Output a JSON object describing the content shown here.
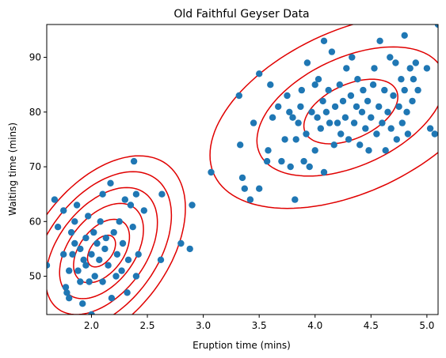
{
  "chart_data": {
    "type": "scatter",
    "title": "Old Faithful Geyser Data",
    "xlabel": "Eruption time (mins)",
    "ylabel": "Waiting time (mins)",
    "xlim": [
      1.6,
      5.1
    ],
    "ylim": [
      43,
      96
    ],
    "xticks": [
      "2.0",
      "2.5",
      "3.0",
      "3.5",
      "4.0",
      "4.5",
      "5.0"
    ],
    "yticks": [
      "50",
      "60",
      "70",
      "80",
      "90"
    ],
    "grid": false,
    "legend": "none",
    "point_color": "#1f77b4",
    "contour_color": "#e00000",
    "points": [
      [
        1.6,
        52
      ],
      [
        1.67,
        64
      ],
      [
        1.7,
        59
      ],
      [
        1.75,
        62
      ],
      [
        1.75,
        54
      ],
      [
        1.77,
        48
      ],
      [
        1.78,
        47
      ],
      [
        1.8,
        51
      ],
      [
        1.8,
        46
      ],
      [
        1.82,
        58
      ],
      [
        1.83,
        54
      ],
      [
        1.85,
        60
      ],
      [
        1.85,
        56
      ],
      [
        1.87,
        63
      ],
      [
        1.88,
        51
      ],
      [
        1.9,
        55
      ],
      [
        1.9,
        49
      ],
      [
        1.92,
        45
      ],
      [
        1.93,
        53
      ],
      [
        1.95,
        57
      ],
      [
        1.95,
        52
      ],
      [
        1.97,
        61
      ],
      [
        1.98,
        49
      ],
      [
        2.0,
        43
      ],
      [
        2.0,
        54
      ],
      [
        2.02,
        58
      ],
      [
        2.03,
        50
      ],
      [
        2.05,
        56
      ],
      [
        2.07,
        53
      ],
      [
        2.08,
        60
      ],
      [
        2.1,
        65
      ],
      [
        2.1,
        49
      ],
      [
        2.12,
        55
      ],
      [
        2.13,
        57
      ],
      [
        2.15,
        52
      ],
      [
        2.17,
        67
      ],
      [
        2.18,
        46
      ],
      [
        2.2,
        58
      ],
      [
        2.22,
        50
      ],
      [
        2.23,
        54
      ],
      [
        2.25,
        60
      ],
      [
        2.27,
        51
      ],
      [
        2.28,
        56
      ],
      [
        2.3,
        64
      ],
      [
        2.32,
        47
      ],
      [
        2.33,
        53
      ],
      [
        2.35,
        63
      ],
      [
        2.37,
        59
      ],
      [
        2.38,
        71
      ],
      [
        2.4,
        65
      ],
      [
        2.4,
        50
      ],
      [
        2.42,
        54
      ],
      [
        2.47,
        62
      ],
      [
        2.62,
        53
      ],
      [
        2.63,
        65
      ],
      [
        2.8,
        56
      ],
      [
        2.88,
        55
      ],
      [
        2.9,
        63
      ],
      [
        3.07,
        69
      ],
      [
        3.32,
        83
      ],
      [
        3.33,
        74
      ],
      [
        3.35,
        68
      ],
      [
        3.37,
        66
      ],
      [
        3.42,
        64
      ],
      [
        3.45,
        78
      ],
      [
        3.5,
        87
      ],
      [
        3.5,
        66
      ],
      [
        3.57,
        71
      ],
      [
        3.58,
        73
      ],
      [
        3.6,
        85
      ],
      [
        3.62,
        79
      ],
      [
        3.67,
        81
      ],
      [
        3.7,
        71
      ],
      [
        3.73,
        75
      ],
      [
        3.75,
        83
      ],
      [
        3.77,
        80
      ],
      [
        3.78,
        70
      ],
      [
        3.8,
        79
      ],
      [
        3.82,
        64
      ],
      [
        3.83,
        75
      ],
      [
        3.85,
        78
      ],
      [
        3.87,
        81
      ],
      [
        3.88,
        84
      ],
      [
        3.9,
        71
      ],
      [
        3.92,
        76
      ],
      [
        3.93,
        89
      ],
      [
        3.95,
        70
      ],
      [
        3.97,
        80
      ],
      [
        4.0,
        85
      ],
      [
        4.0,
        73
      ],
      [
        4.02,
        79
      ],
      [
        4.03,
        86
      ],
      [
        4.05,
        77
      ],
      [
        4.07,
        82
      ],
      [
        4.08,
        93
      ],
      [
        4.08,
        69
      ],
      [
        4.1,
        80
      ],
      [
        4.12,
        84
      ],
      [
        4.13,
        78
      ],
      [
        4.15,
        91
      ],
      [
        4.17,
        74
      ],
      [
        4.18,
        81
      ],
      [
        4.2,
        78
      ],
      [
        4.22,
        85
      ],
      [
        4.23,
        76
      ],
      [
        4.25,
        82
      ],
      [
        4.27,
        79
      ],
      [
        4.28,
        88
      ],
      [
        4.3,
        75
      ],
      [
        4.32,
        83
      ],
      [
        4.33,
        90
      ],
      [
        4.35,
        78
      ],
      [
        4.37,
        81
      ],
      [
        4.38,
        86
      ],
      [
        4.4,
        74
      ],
      [
        4.42,
        80
      ],
      [
        4.43,
        84
      ],
      [
        4.45,
        77
      ],
      [
        4.47,
        82
      ],
      [
        4.48,
        73
      ],
      [
        4.5,
        79
      ],
      [
        4.52,
        85
      ],
      [
        4.53,
        88
      ],
      [
        4.55,
        76
      ],
      [
        4.57,
        81
      ],
      [
        4.58,
        93
      ],
      [
        4.6,
        78
      ],
      [
        4.62,
        84
      ],
      [
        4.63,
        73
      ],
      [
        4.65,
        80
      ],
      [
        4.67,
        90
      ],
      [
        4.68,
        77
      ],
      [
        4.7,
        83
      ],
      [
        4.72,
        89
      ],
      [
        4.73,
        75
      ],
      [
        4.75,
        81
      ],
      [
        4.77,
        86
      ],
      [
        4.78,
        78
      ],
      [
        4.8,
        84
      ],
      [
        4.8,
        94
      ],
      [
        4.82,
        80
      ],
      [
        4.83,
        76
      ],
      [
        4.85,
        88
      ],
      [
        4.87,
        82
      ],
      [
        4.88,
        86
      ],
      [
        4.9,
        89
      ],
      [
        4.92,
        84
      ],
      [
        5.0,
        88
      ],
      [
        5.03,
        77
      ],
      [
        5.07,
        76
      ],
      [
        5.1,
        96
      ]
    ],
    "contours": [
      {
        "cx": 2.09,
        "cy": 54.6,
        "sx": 0.25,
        "sy": 5.8,
        "rho": 0.45,
        "levels": [
          0.5,
          1.0,
          1.5,
          2.0,
          2.5,
          3.0
        ]
      },
      {
        "cx": 4.32,
        "cy": 80.1,
        "sx": 0.42,
        "sy": 5.9,
        "rho": 0.45,
        "levels": [
          1.0,
          2.0,
          3.0
        ]
      }
    ]
  }
}
